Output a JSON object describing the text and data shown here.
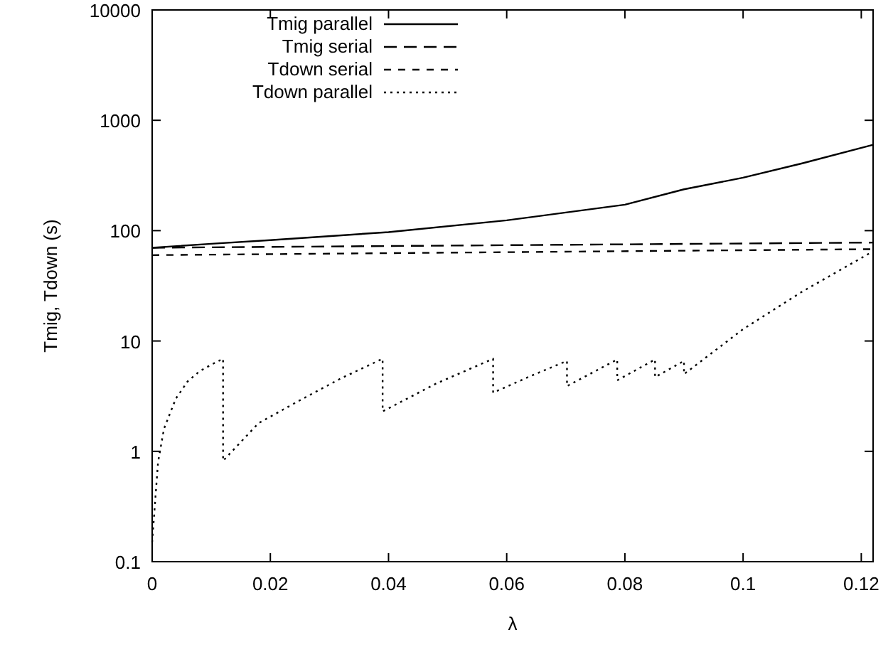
{
  "chart_data": {
    "type": "line",
    "xlabel": "λ",
    "ylabel": "Tmig, Tdown (s)",
    "log": "y",
    "xlim": [
      0,
      0.122
    ],
    "xticks": [
      0,
      0.02,
      0.04,
      0.06,
      0.08,
      0.1,
      0.12
    ],
    "ylim": [
      0.1,
      10000
    ],
    "yticks": [
      0.1,
      1,
      10,
      100,
      1000,
      10000
    ],
    "grid": false,
    "legend": "top left",
    "series": [
      {
        "name": "Tmig parallel",
        "color": "#000000",
        "line_style": "solid",
        "x": [
          0,
          0.01,
          0.02,
          0.04,
          0.06,
          0.07,
          0.08,
          0.09,
          0.1,
          0.11,
          0.122
        ],
        "values": [
          70,
          76,
          82,
          97,
          124,
          146,
          172,
          237,
          302,
          407,
          600
        ]
      },
      {
        "name": "Tmig serial",
        "color": "#000000",
        "line_style": "dashed",
        "x": [
          0,
          0.122
        ],
        "values": [
          70,
          78
        ]
      },
      {
        "name": "Tdown serial",
        "color": "#000000",
        "line_style": "dashed_short",
        "x": [
          0,
          0.122
        ],
        "values": [
          60,
          68
        ]
      },
      {
        "name": "Tdown parallel",
        "color": "#000000",
        "line_style": "dotted",
        "x": [
          0,
          0.0005,
          0.001,
          0.002,
          0.004,
          0.006,
          0.008,
          0.01,
          0.012,
          0.012,
          0.018,
          0.025,
          0.032,
          0.039,
          0.039,
          0.048,
          0.0577,
          0.0577,
          0.064,
          0.0702,
          0.0702,
          0.0787,
          0.0787,
          0.0851,
          0.0851,
          0.09,
          0.09,
          0.1,
          0.11,
          0.122
        ],
        "values": [
          0.15,
          0.35,
          0.8,
          1.6,
          3,
          4.3,
          5.3,
          6.1,
          6.9,
          0.82,
          1.8,
          2.9,
          4.6,
          6.9,
          2.3,
          4.1,
          6.9,
          3.4,
          4.8,
          6.6,
          3.9,
          6.8,
          4.4,
          6.8,
          4.7,
          6.6,
          5,
          12.8,
          28,
          65
        ]
      }
    ]
  }
}
